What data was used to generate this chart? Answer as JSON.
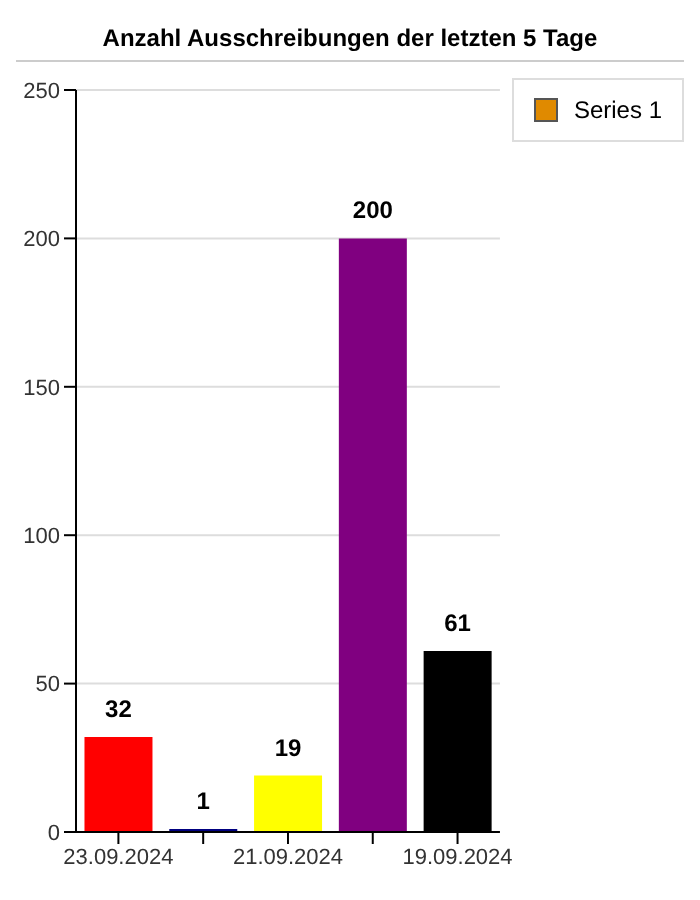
{
  "chart_data": {
    "type": "bar",
    "title": "Anzahl Ausschreibungen der letzten 5 Tage",
    "categories": [
      "23.09.2024",
      null,
      "21.09.2024",
      null,
      "19.09.2024"
    ],
    "series": [
      {
        "name": "Series 1",
        "color": "#e08a00",
        "values": [
          32,
          1,
          19,
          200,
          61
        ],
        "colors": [
          "#ff0000",
          "#000080",
          "#ffff00",
          "#800080",
          "#000000"
        ]
      }
    ],
    "ylim": [
      0,
      250
    ],
    "yticks": [
      0,
      50,
      100,
      150,
      200,
      250
    ],
    "grid": "y",
    "data_labels": true,
    "legend": "top right"
  }
}
